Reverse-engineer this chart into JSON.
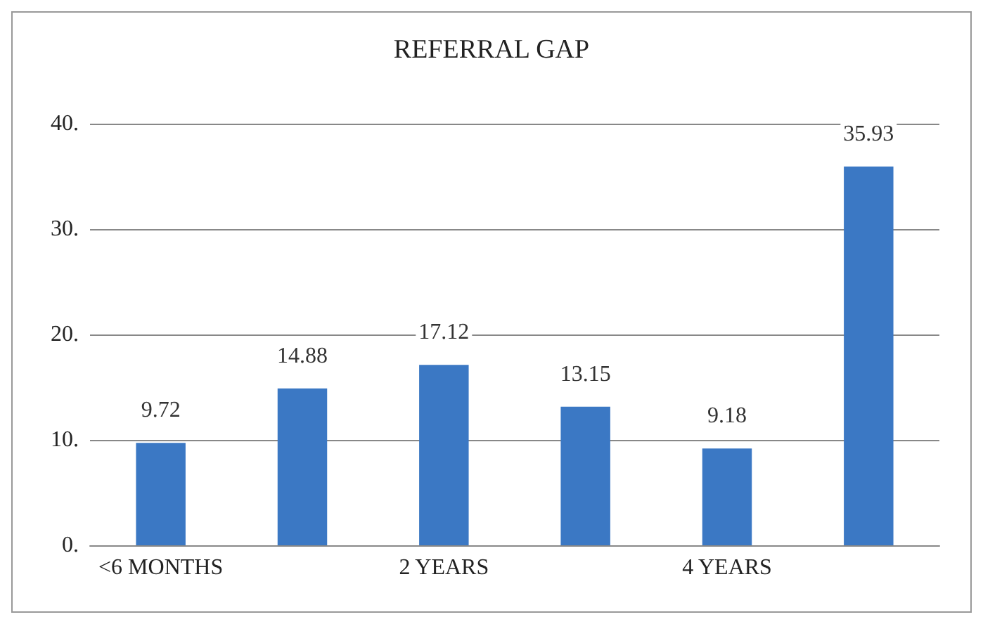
{
  "chart_data": {
    "type": "bar",
    "title": "REFERRAL GAP",
    "categories": [
      "<6 MONTHS",
      null,
      "2 YEARS",
      null,
      "4 YEARS",
      null
    ],
    "values": [
      9.72,
      14.88,
      17.12,
      13.15,
      9.18,
      35.93
    ],
    "color": "#3b78c4",
    "ylim": [
      0,
      40
    ],
    "yticks": [
      {
        "value": 0,
        "label": "0."
      },
      {
        "value": 10,
        "label": "10."
      },
      {
        "value": 20,
        "label": "20."
      },
      {
        "value": 30,
        "label": "30."
      },
      {
        "value": 40,
        "label": "40."
      }
    ],
    "grid": "y",
    "data_labels": true
  }
}
